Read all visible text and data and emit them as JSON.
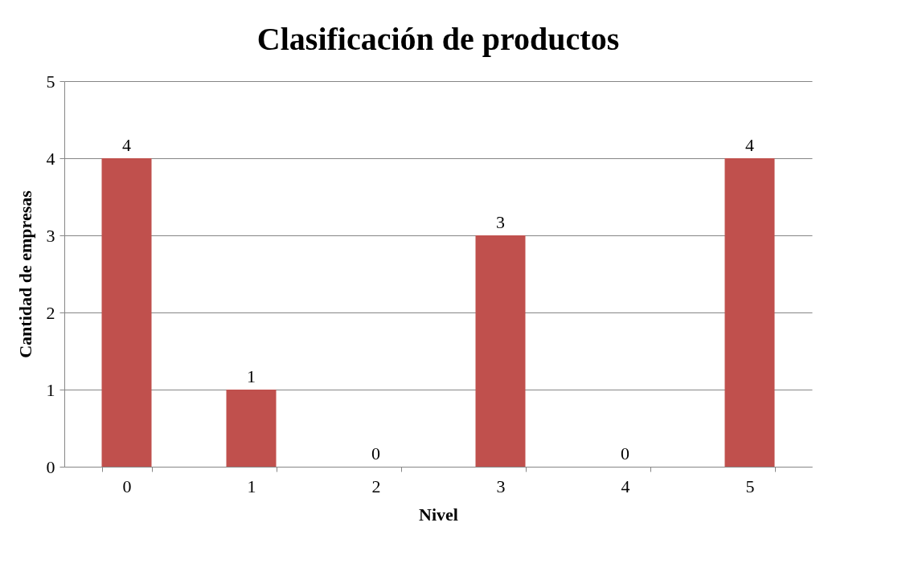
{
  "chart_data": {
    "type": "bar",
    "title": "Clasificación de productos",
    "xlabel": "Nivel",
    "ylabel": "Cantidad de empresas",
    "categories": [
      "0",
      "1",
      "2",
      "3",
      "4",
      "5"
    ],
    "values": [
      4,
      1,
      0,
      3,
      0,
      4
    ],
    "color": "#c0504d",
    "ylim": [
      0,
      5
    ],
    "yticks": [
      0,
      1,
      2,
      3,
      4,
      5
    ],
    "grid": "y",
    "data_labels": true
  }
}
